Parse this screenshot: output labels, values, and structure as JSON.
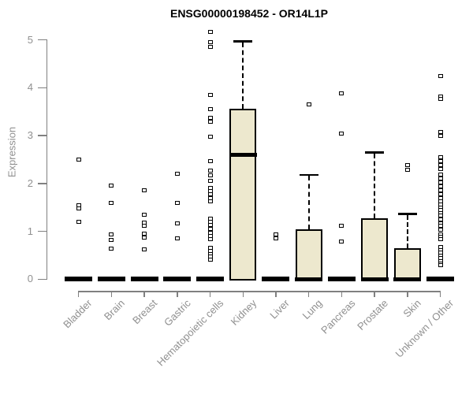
{
  "chart_data": {
    "type": "boxplot",
    "title": "ENSG00000198452 - OR14L1P",
    "xlabel": "",
    "ylabel": "Expression",
    "ylim": [
      0,
      5
    ],
    "yticks": [
      0,
      1,
      2,
      3,
      4,
      5
    ],
    "grid": false,
    "legend": "none",
    "colors": {
      "box_fill": "#EDE8CE",
      "box_border": "#000000",
      "median": "#000000",
      "axis": "#808080",
      "axis_text": "#909090",
      "title_text": "#000000",
      "background": "#ffffff"
    },
    "categories": [
      "Bladder",
      "Brain",
      "Breast",
      "Gastric",
      "Hematopoietic cells",
      "Kidney",
      "Liver",
      "Lung",
      "Pancreas",
      "Prostate",
      "Skin",
      "Unknown / Other"
    ],
    "boxes": [
      {
        "category": "Bladder",
        "q1": 0,
        "median": 0,
        "q3": 0,
        "whisker_low": 0,
        "whisker_high": 0,
        "outliers": [
          2.5,
          1.55,
          1.48,
          1.2
        ]
      },
      {
        "category": "Brain",
        "q1": 0,
        "median": 0,
        "q3": 0,
        "whisker_low": 0,
        "whisker_high": 0,
        "outliers": [
          1.95,
          1.6,
          0.93,
          0.82,
          0.64
        ]
      },
      {
        "category": "Breast",
        "q1": 0,
        "median": 0,
        "q3": 0,
        "whisker_low": 0,
        "whisker_high": 0,
        "outliers": [
          1.85,
          1.35,
          1.18,
          1.12,
          0.95,
          0.87,
          0.62
        ]
      },
      {
        "category": "Gastric",
        "q1": 0,
        "median": 0,
        "q3": 0,
        "whisker_low": 0,
        "whisker_high": 0,
        "outliers": [
          2.2,
          1.6,
          1.16,
          0.86
        ]
      },
      {
        "category": "Hematopoietic cells",
        "q1": 0,
        "median": 0,
        "q3": 0,
        "whisker_low": 0,
        "whisker_high": 0,
        "outliers": [
          5.17,
          4.95,
          4.86,
          3.85,
          3.55,
          3.37,
          3.29,
          2.98,
          2.47,
          2.27,
          2.17,
          2.06,
          1.91,
          1.84,
          1.77,
          1.7,
          1.63,
          1.27,
          1.2,
          1.14,
          1.05,
          0.97,
          0.9,
          0.84,
          0.66,
          0.59,
          0.53,
          0.47,
          0.41
        ]
      },
      {
        "category": "Kidney",
        "q1": 0,
        "median": 2.6,
        "q3": 3.56,
        "whisker_low": 0,
        "whisker_high": 4.99,
        "outliers": []
      },
      {
        "category": "Liver",
        "q1": 0,
        "median": 0,
        "q3": 0,
        "whisker_low": 0,
        "whisker_high": 0,
        "outliers": [
          0.93,
          0.85
        ]
      },
      {
        "category": "Lung",
        "q1": 0,
        "median": 0,
        "q3": 1.05,
        "whisker_low": 0,
        "whisker_high": 2.2,
        "outliers": [
          3.65
        ]
      },
      {
        "category": "Pancreas",
        "q1": 0,
        "median": 0,
        "q3": 0,
        "whisker_low": 0,
        "whisker_high": 0,
        "outliers": [
          3.88,
          3.05,
          1.11,
          0.79
        ]
      },
      {
        "category": "Prostate",
        "q1": 0,
        "median": 0,
        "q3": 1.28,
        "whisker_low": 0,
        "whisker_high": 2.67,
        "outliers": []
      },
      {
        "category": "Skin",
        "q1": 0,
        "median": 0,
        "q3": 0.65,
        "whisker_low": 0,
        "whisker_high": 1.38,
        "outliers": [
          2.39,
          2.28
        ]
      },
      {
        "category": "Unknown / Other",
        "q1": 0,
        "median": 0,
        "q3": 0,
        "whisker_low": 0,
        "whisker_high": 0,
        "outliers": [
          4.25,
          3.82,
          3.77,
          3.07,
          3.0,
          2.55,
          2.46,
          2.38,
          2.3,
          2.19,
          2.1,
          2.02,
          1.94,
          1.86,
          1.78,
          1.7,
          1.62,
          1.56,
          1.5,
          1.44,
          1.38,
          1.33,
          1.25,
          1.17,
          1.11,
          1.03,
          0.94,
          0.88,
          0.83,
          0.67,
          0.61,
          0.55,
          0.49,
          0.44,
          0.38,
          0.33,
          0.29
        ]
      }
    ]
  }
}
